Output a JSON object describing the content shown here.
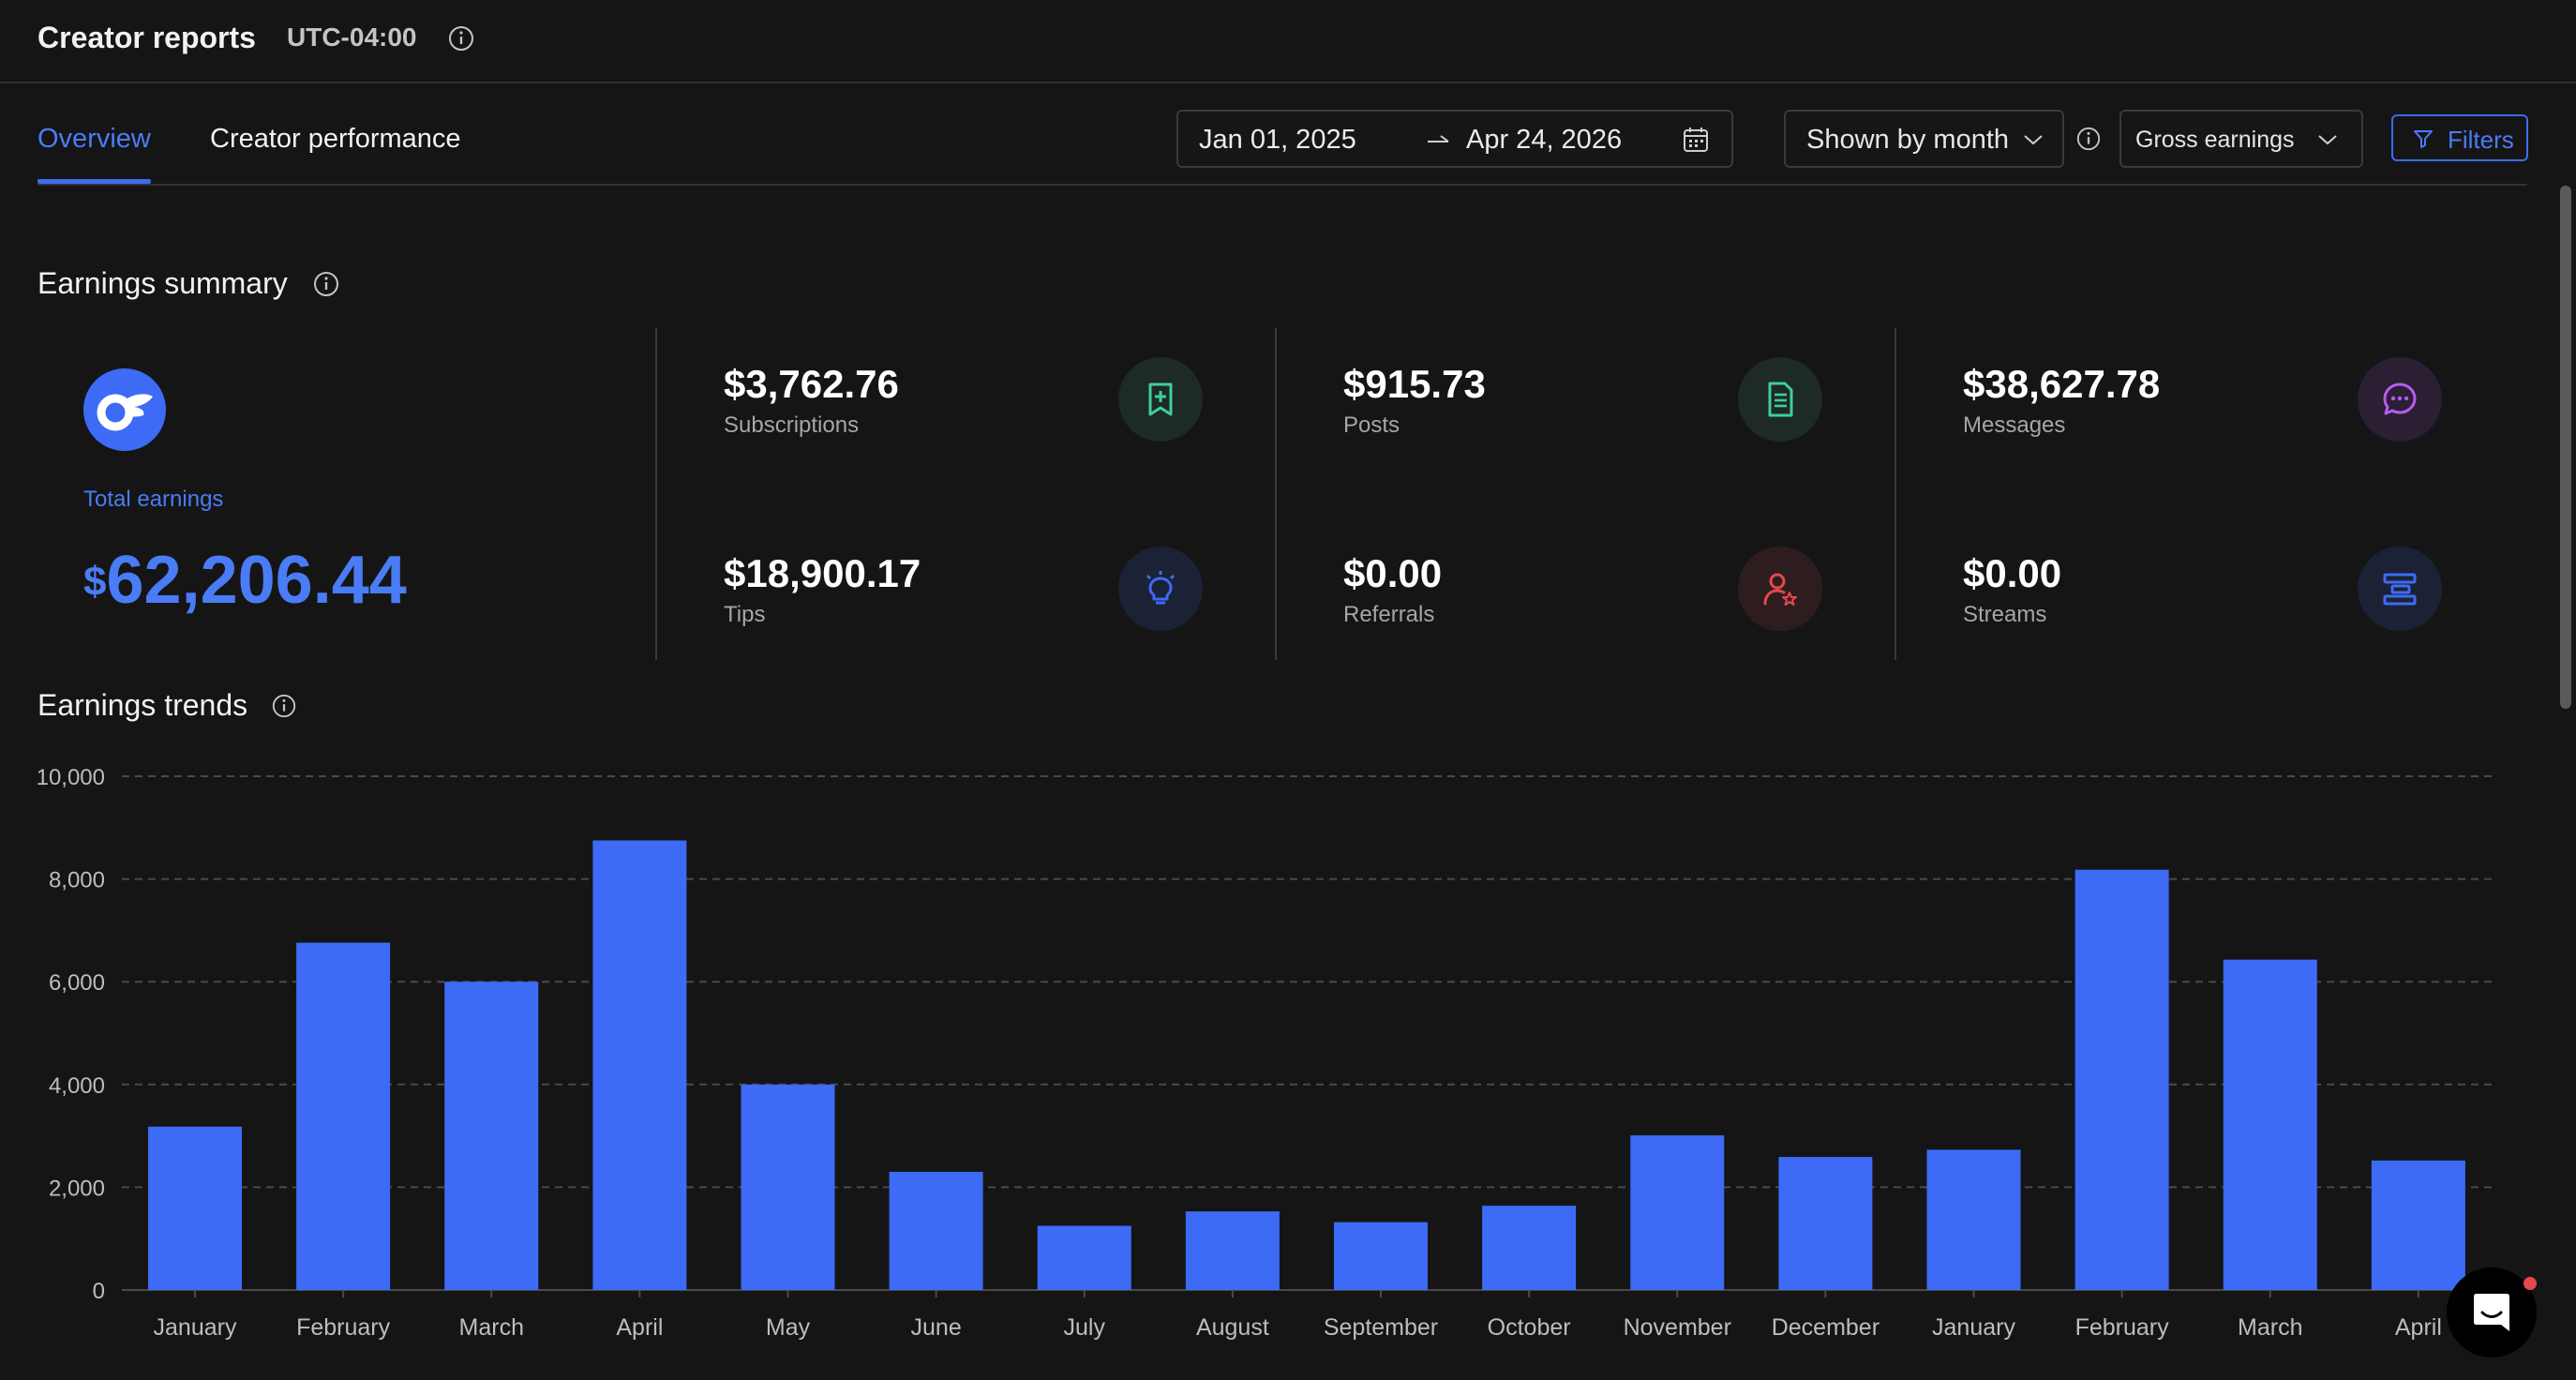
{
  "header": {
    "title": "Creator reports",
    "timezone": "UTC-04:00"
  },
  "tabs": [
    {
      "label": "Overview",
      "active": true
    },
    {
      "label": "Creator performance",
      "active": false
    }
  ],
  "controls": {
    "date_from": "Jan 01, 2025",
    "date_to": "Apr 24, 2026",
    "grouping": "Shown by month",
    "metric": "Gross earnings",
    "filters_label": "Filters"
  },
  "summary": {
    "title": "Earnings summary",
    "total_label": "Total earnings",
    "total_currency": "$",
    "total_value": "62,206.44",
    "items": [
      {
        "value": "$3,762.76",
        "label": "Subscriptions",
        "icon": "bookmark-plus-icon",
        "color": "#3ecf9a"
      },
      {
        "value": "$915.73",
        "label": "Posts",
        "icon": "document-icon",
        "color": "#3ecf9a"
      },
      {
        "value": "$38,627.78",
        "label": "Messages",
        "icon": "chat-bubble-icon",
        "color": "#b65cf0"
      },
      {
        "value": "$18,900.17",
        "label": "Tips",
        "icon": "lightbulb-icon",
        "color": "#3d6bf5"
      },
      {
        "value": "$0.00",
        "label": "Referrals",
        "icon": "user-star-icon",
        "color": "#e5484d"
      },
      {
        "value": "$0.00",
        "label": "Streams",
        "icon": "stream-icon",
        "color": "#3d6bf5"
      }
    ]
  },
  "trends": {
    "title": "Earnings trends"
  },
  "chart_data": {
    "type": "bar",
    "title": "Earnings trends",
    "categories": [
      "January",
      "February",
      "March",
      "April",
      "May",
      "June",
      "July",
      "August",
      "September",
      "October",
      "November",
      "December",
      "January",
      "February",
      "March",
      "April"
    ],
    "values": [
      3180,
      6760,
      6000,
      8750,
      4000,
      2300,
      1250,
      1530,
      1320,
      1640,
      3010,
      2590,
      2730,
      8180,
      6430,
      2520
    ],
    "y_ticks": [
      "0",
      "2,000",
      "4,000",
      "6,000",
      "8,000",
      "10,000"
    ],
    "ylim": [
      0,
      10000
    ],
    "grid": true,
    "bar_color": "#3d6bf5"
  }
}
